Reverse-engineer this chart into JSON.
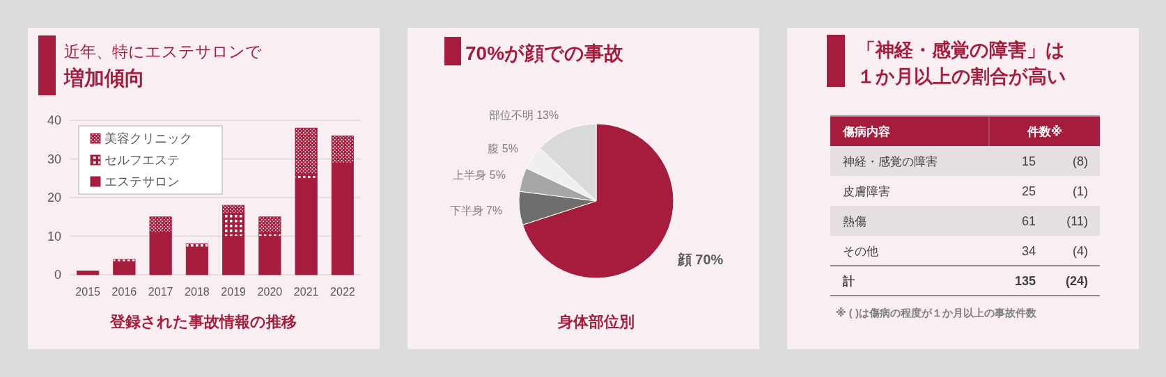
{
  "chart_data": [
    {
      "type": "bar",
      "stacked": true,
      "title": "近年、特にエステサロンで",
      "subtitle": "増加傾向",
      "annotations": [
        "登録された事故情報の推移"
      ],
      "categories": [
        "2015",
        "2016",
        "2017",
        "2018",
        "2019",
        "2020",
        "2021",
        "2022"
      ],
      "series": [
        {
          "name": "エステサロン",
          "color": "#a51c3c",
          "values": [
            1,
            3,
            11,
            7,
            10,
            10,
            25,
            29
          ]
        },
        {
          "name": "セルフエステ",
          "color": "#a51c3c",
          "values": [
            0,
            1,
            0,
            1,
            6,
            1,
            1,
            0
          ]
        },
        {
          "name": "美容クリニック",
          "color": "#a51c3c",
          "values": [
            0,
            0,
            4,
            0,
            2,
            4,
            12,
            7
          ]
        }
      ],
      "ylim": [
        0,
        40
      ],
      "yticks": [
        0,
        10,
        20,
        30,
        40
      ],
      "grid": "y",
      "legend": "top left"
    },
    {
      "type": "pie",
      "title": "70%が顔での事故",
      "annotations": [
        "身体部位別"
      ],
      "categories": [
        "顔",
        "下半身",
        "上半身",
        "腹",
        "部位不明"
      ],
      "values": [
        70,
        7,
        5,
        5,
        13
      ],
      "value_labels": [
        "70%",
        "7%",
        "5%",
        "5%",
        "13%"
      ],
      "colors": [
        "#a51c3c",
        "#6e6e6e",
        "#a6a6a6",
        "#efefef",
        "#d9d9d9"
      ],
      "data_labels": true
    },
    {
      "type": "other",
      "title": "「神経・感覚の障害」は",
      "subtitle": "１か月以上の割合が高い",
      "xlabel": "傷病内容",
      "categories": [
        "神経・感覚の障害",
        "皮膚障害",
        "熱傷",
        "その他",
        "計"
      ],
      "series": [
        {
          "name": "件数※",
          "colors": [
            "#e6dfe2",
            "#f9eff3",
            "#e6dfe2",
            "#f9eff3",
            "#f9eff3"
          ],
          "values": [
            15,
            25,
            61,
            34,
            135
          ]
        },
        {
          "colors": [
            "#e6dfe2",
            "#f9eff3",
            "#e6dfe2",
            "#f9eff3",
            "#f9eff3"
          ],
          "values": [
            8,
            1,
            11,
            4,
            24
          ],
          "value_labels": [
            "(8)",
            "(1)",
            "(11)",
            "(4)",
            "(24)"
          ]
        }
      ],
      "data_labels": true,
      "annotations": [
        "※ ( )は傷病の程度が１か月以上の事故件数"
      ]
    }
  ]
}
